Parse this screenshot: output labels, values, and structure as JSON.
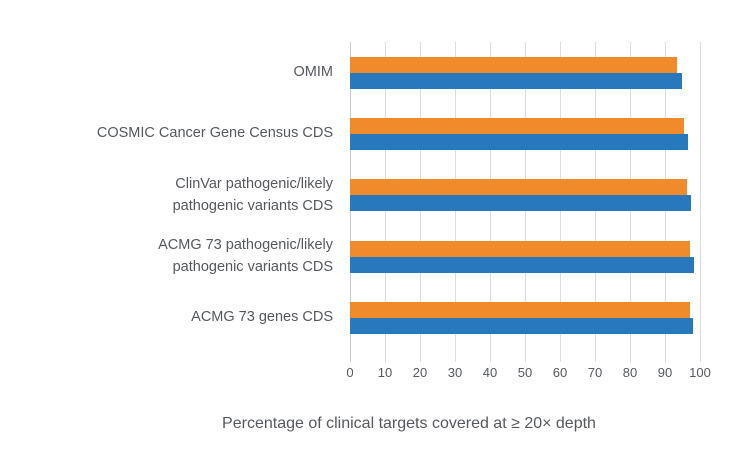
{
  "chart_data": {
    "type": "bar",
    "orientation": "horizontal",
    "title": "",
    "xlabel": "Percentage of clinical targets covered at ≥ 20× depth",
    "ylabel": "",
    "xlim": [
      0,
      100
    ],
    "xticks": [
      0,
      10,
      20,
      30,
      40,
      50,
      60,
      70,
      80,
      90,
      100
    ],
    "grid": true,
    "legend_position": "none",
    "categories": [
      "OMIM",
      "COSMIC Cancer Gene Census CDS",
      "ClinVar pathogenic/likely\npathogenic variants CDS",
      "ACMG 73 pathogenic/likely\npathogenic variants CDS",
      "ACMG 73 genes CDS"
    ],
    "series": [
      {
        "name": "orange-series",
        "color": "#EF8B2B",
        "values": [
          93.5,
          95.3,
          96.3,
          97.2,
          97.2
        ]
      },
      {
        "name": "blue-series",
        "color": "#2878BE",
        "values": [
          94.8,
          96.5,
          97.4,
          98.4,
          98.1
        ]
      }
    ],
    "colors": {
      "gridline": "#DCDCDC",
      "axis_line": "#C9CDD1",
      "text": "#55585C",
      "background": "#FFFFFF"
    }
  }
}
